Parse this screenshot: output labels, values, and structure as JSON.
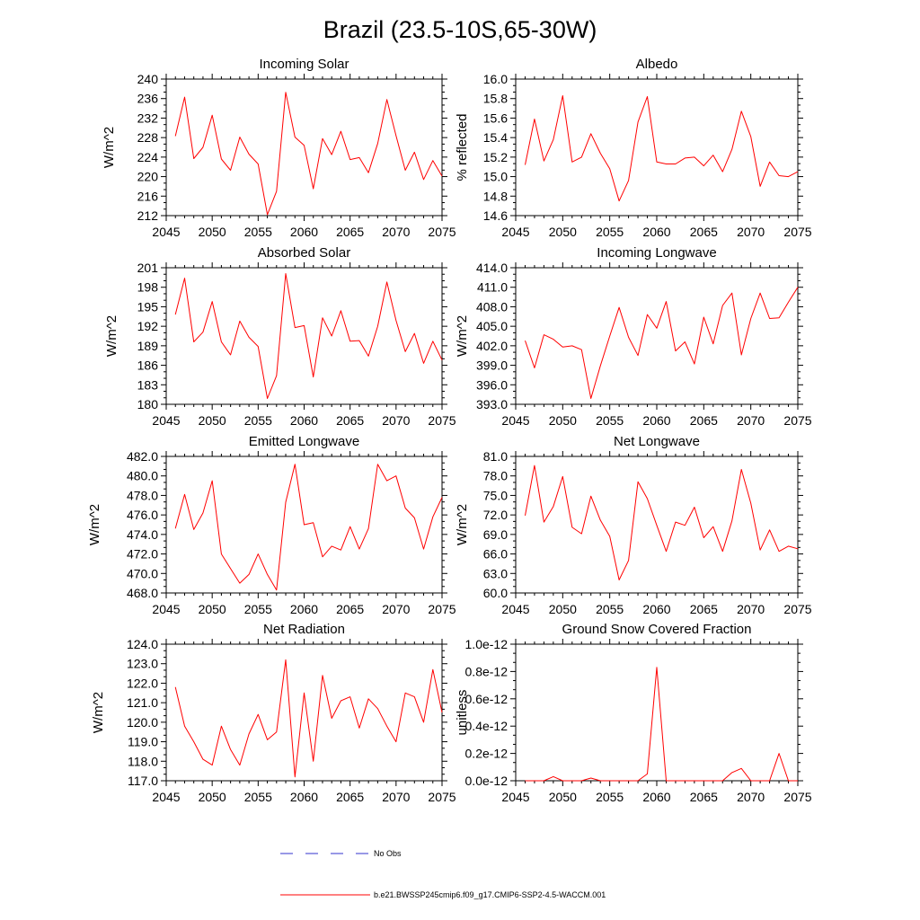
{
  "page_title": "Brazil (23.5-10S,65-30W)",
  "colors": {
    "series": "#ff0000",
    "obs": "#3333cc",
    "axis": "#000000"
  },
  "legend": {
    "obs_label": "No Obs",
    "model_label": "b.e21.BWSSP245cmip6.f09_g17.CMIP6-SSP2-4.5-WACCM.001"
  },
  "chart_data": [
    {
      "type": "line",
      "title": "Incoming Solar",
      "ylabel": "W/m^2",
      "xlim": [
        2045,
        2075
      ],
      "xticks": [
        2045,
        2050,
        2055,
        2060,
        2065,
        2070,
        2075
      ],
      "ylim": [
        212,
        240
      ],
      "yticks": [
        "212",
        "216",
        "220",
        "224",
        "228",
        "232",
        "236",
        "240"
      ],
      "x": [
        2046,
        2047,
        2048,
        2049,
        2050,
        2051,
        2052,
        2053,
        2054,
        2055,
        2056,
        2057,
        2058,
        2059,
        2060,
        2061,
        2062,
        2063,
        2064,
        2065,
        2066,
        2067,
        2068,
        2069,
        2070,
        2071,
        2072,
        2073,
        2074,
        2075
      ],
      "values": [
        228.3,
        236.3,
        223.7,
        226.0,
        232.6,
        223.6,
        221.3,
        228.1,
        224.6,
        222.6,
        212.2,
        217.0,
        237.3,
        228.1,
        226.4,
        217.5,
        227.8,
        224.5,
        229.3,
        223.5,
        223.9,
        220.8,
        226.8,
        235.8,
        228.4,
        221.3,
        225.0,
        219.4,
        223.3,
        220.1
      ],
      "series_name": "b.e21.BWSSP245cmip6.f09_g17.CMIP6-SSP2-4.5-WACCM.001"
    },
    {
      "type": "line",
      "title": "Albedo",
      "ylabel": "% reflected",
      "xlim": [
        2045,
        2075
      ],
      "xticks": [
        2045,
        2050,
        2055,
        2060,
        2065,
        2070,
        2075
      ],
      "ylim": [
        14.6,
        16.0
      ],
      "yticks": [
        "14.6",
        "14.8",
        "15.0",
        "15.2",
        "15.4",
        "15.6",
        "15.8",
        "16.0"
      ],
      "x": [
        2046,
        2047,
        2048,
        2049,
        2050,
        2051,
        2052,
        2053,
        2054,
        2055,
        2056,
        2057,
        2058,
        2059,
        2060,
        2061,
        2062,
        2063,
        2064,
        2065,
        2066,
        2067,
        2068,
        2069,
        2070,
        2071,
        2072,
        2073,
        2074,
        2075
      ],
      "values": [
        15.12,
        15.59,
        15.16,
        15.38,
        15.83,
        15.15,
        15.2,
        15.44,
        15.24,
        15.08,
        14.75,
        14.96,
        15.56,
        15.82,
        15.15,
        15.13,
        15.13,
        15.19,
        15.2,
        15.11,
        15.22,
        15.05,
        15.28,
        15.67,
        15.41,
        14.9,
        15.15,
        15.01,
        15.0,
        15.05
      ],
      "series_name": "b.e21.BWSSP245cmip6.f09_g17.CMIP6-SSP2-4.5-WACCM.001"
    },
    {
      "type": "line",
      "title": "Absorbed Solar",
      "ylabel": "W/m^2",
      "xlim": [
        2045,
        2075
      ],
      "xticks": [
        2045,
        2050,
        2055,
        2060,
        2065,
        2070,
        2075
      ],
      "ylim": [
        180,
        201
      ],
      "yticks": [
        "180",
        "183",
        "186",
        "189",
        "192",
        "195",
        "198",
        "201"
      ],
      "x": [
        2046,
        2047,
        2048,
        2049,
        2050,
        2051,
        2052,
        2053,
        2054,
        2055,
        2056,
        2057,
        2058,
        2059,
        2060,
        2061,
        2062,
        2063,
        2064,
        2065,
        2066,
        2067,
        2068,
        2069,
        2070,
        2071,
        2072,
        2073,
        2074,
        2075
      ],
      "values": [
        193.8,
        199.4,
        189.6,
        191.1,
        195.8,
        189.6,
        187.6,
        192.8,
        190.3,
        188.9,
        180.9,
        184.4,
        200.1,
        191.8,
        192.1,
        184.2,
        193.3,
        190.5,
        194.4,
        189.7,
        189.8,
        187.4,
        192.0,
        198.8,
        192.9,
        188.1,
        190.9,
        186.3,
        189.7,
        186.8
      ],
      "series_name": "b.e21.BWSSP245cmip6.f09_g17.CMIP6-SSP2-4.5-WACCM.001"
    },
    {
      "type": "line",
      "title": "Incoming Longwave",
      "ylabel": "W/m^2",
      "xlim": [
        2045,
        2075
      ],
      "xticks": [
        2045,
        2050,
        2055,
        2060,
        2065,
        2070,
        2075
      ],
      "ylim": [
        393.0,
        414.0
      ],
      "yticks": [
        "393.0",
        "396.0",
        "399.0",
        "402.0",
        "405.0",
        "408.0",
        "411.0",
        "414.0"
      ],
      "x": [
        2046,
        2047,
        2048,
        2049,
        2050,
        2051,
        2052,
        2053,
        2054,
        2055,
        2056,
        2057,
        2058,
        2059,
        2060,
        2061,
        2062,
        2063,
        2064,
        2065,
        2066,
        2067,
        2068,
        2069,
        2070,
        2071,
        2072,
        2073,
        2074,
        2075
      ],
      "values": [
        402.8,
        398.6,
        403.7,
        403.0,
        401.8,
        402.0,
        401.4,
        393.9,
        398.9,
        403.5,
        407.9,
        403.3,
        400.5,
        406.8,
        404.7,
        408.8,
        401.2,
        402.6,
        399.2,
        406.4,
        402.3,
        408.2,
        410.1,
        400.6,
        406.2,
        410.1,
        406.2,
        406.3,
        408.7,
        411.0
      ],
      "series_name": "b.e21.BWSSP245cmip6.f09_g17.CMIP6-SSP2-4.5-WACCM.001"
    },
    {
      "type": "line",
      "title": "Emitted Longwave",
      "ylabel": "W/m^2",
      "xlim": [
        2045,
        2075
      ],
      "xticks": [
        2045,
        2050,
        2055,
        2060,
        2065,
        2070,
        2075
      ],
      "ylim": [
        468.0,
        482.0
      ],
      "yticks": [
        "468.0",
        "470.0",
        "472.0",
        "474.0",
        "476.0",
        "478.0",
        "480.0",
        "482.0"
      ],
      "x": [
        2046,
        2047,
        2048,
        2049,
        2050,
        2051,
        2052,
        2053,
        2054,
        2055,
        2056,
        2057,
        2058,
        2059,
        2060,
        2061,
        2062,
        2063,
        2064,
        2065,
        2066,
        2067,
        2068,
        2069,
        2070,
        2071,
        2072,
        2073,
        2074,
        2075
      ],
      "values": [
        474.6,
        478.1,
        474.5,
        476.2,
        479.5,
        472.0,
        470.5,
        469.0,
        469.9,
        472.0,
        469.9,
        468.3,
        477.3,
        481.2,
        475.0,
        475.2,
        471.7,
        472.8,
        472.4,
        474.8,
        472.5,
        474.6,
        481.2,
        479.5,
        480.0,
        476.7,
        475.7,
        472.5,
        475.8,
        477.8
      ],
      "series_name": "b.e21.BWSSP245cmip6.f09_g17.CMIP6-SSP2-4.5-WACCM.001"
    },
    {
      "type": "line",
      "title": "Net Longwave",
      "ylabel": "W/m^2",
      "xlim": [
        2045,
        2075
      ],
      "xticks": [
        2045,
        2050,
        2055,
        2060,
        2065,
        2070,
        2075
      ],
      "ylim": [
        60.0,
        81.0
      ],
      "yticks": [
        "60.0",
        "63.0",
        "66.0",
        "69.0",
        "72.0",
        "75.0",
        "78.0",
        "81.0"
      ],
      "x": [
        2046,
        2047,
        2048,
        2049,
        2050,
        2051,
        2052,
        2053,
        2054,
        2055,
        2056,
        2057,
        2058,
        2059,
        2060,
        2061,
        2062,
        2063,
        2064,
        2065,
        2066,
        2067,
        2068,
        2069,
        2070,
        2071,
        2072,
        2073,
        2074,
        2075
      ],
      "values": [
        71.9,
        79.6,
        70.9,
        73.3,
        77.9,
        70.1,
        69.1,
        74.9,
        71.2,
        68.7,
        62.0,
        65.0,
        77.1,
        74.5,
        70.4,
        66.4,
        70.9,
        70.4,
        73.2,
        68.5,
        70.2,
        66.4,
        71.1,
        79.0,
        73.8,
        66.6,
        69.7,
        66.4,
        67.2,
        66.8
      ],
      "series_name": "b.e21.BWSSP245cmip6.f09_g17.CMIP6-SSP2-4.5-WACCM.001"
    },
    {
      "type": "line",
      "title": "Net Radiation",
      "ylabel": "W/m^2",
      "xlim": [
        2045,
        2075
      ],
      "xticks": [
        2045,
        2050,
        2055,
        2060,
        2065,
        2070,
        2075
      ],
      "ylim": [
        117.0,
        124.0
      ],
      "yticks": [
        "117.0",
        "118.0",
        "119.0",
        "120.0",
        "121.0",
        "122.0",
        "123.0",
        "124.0"
      ],
      "x": [
        2046,
        2047,
        2048,
        2049,
        2050,
        2051,
        2052,
        2053,
        2054,
        2055,
        2056,
        2057,
        2058,
        2059,
        2060,
        2061,
        2062,
        2063,
        2064,
        2065,
        2066,
        2067,
        2068,
        2069,
        2070,
        2071,
        2072,
        2073,
        2074,
        2075
      ],
      "values": [
        121.8,
        119.8,
        119.0,
        118.1,
        117.8,
        119.8,
        118.6,
        117.8,
        119.4,
        120.4,
        119.1,
        119.5,
        123.2,
        117.2,
        121.5,
        118.0,
        122.4,
        120.2,
        121.1,
        121.3,
        119.7,
        121.2,
        120.7,
        119.8,
        119.0,
        121.5,
        121.3,
        120.0,
        122.7,
        120.5
      ],
      "series_name": "b.e21.BWSSP245cmip6.f09_g17.CMIP6-SSP2-4.5-WACCM.001"
    },
    {
      "type": "line",
      "title": "Ground Snow Covered Fraction",
      "ylabel": "unitless",
      "xlim": [
        2045,
        2075
      ],
      "xticks": [
        2045,
        2050,
        2055,
        2060,
        2065,
        2070,
        2075
      ],
      "ylim": [
        0,
        1.0
      ],
      "yticks": [
        "0.0e-12",
        "0.2e-12",
        "0.4e-12",
        "0.6e-12",
        "0.8e-12",
        "1.0e-12"
      ],
      "x": [
        2046,
        2047,
        2048,
        2049,
        2050,
        2051,
        2052,
        2053,
        2054,
        2055,
        2056,
        2057,
        2058,
        2059,
        2060,
        2061,
        2062,
        2063,
        2064,
        2065,
        2066,
        2067,
        2068,
        2069,
        2070,
        2071,
        2072,
        2073,
        2074,
        2075
      ],
      "values": [
        0,
        0,
        0,
        0.03,
        0,
        0,
        0,
        0.02,
        0,
        0,
        0,
        0,
        0,
        0.05,
        0.83,
        0,
        0,
        0,
        0,
        0,
        0,
        0,
        0.06,
        0.09,
        0,
        0,
        0,
        0.2,
        0,
        0
      ],
      "series_name": "b.e21.BWSSP245cmip6.f09_g17.CMIP6-SSP2-4.5-WACCM.001"
    }
  ]
}
